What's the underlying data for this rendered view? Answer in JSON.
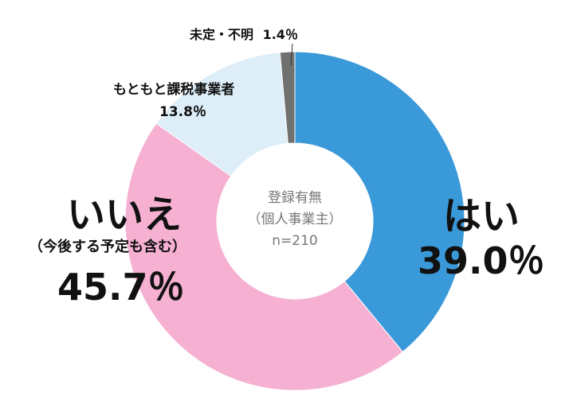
{
  "chart_data": {
    "type": "pie",
    "variant": "donut",
    "center_title": "登録有無",
    "center_subtitle": "（個人事業主）",
    "center_n": "n=210",
    "slices": [
      {
        "label": "はい",
        "value": 39.0,
        "value_label": "39.0％",
        "color": "#3a99d9"
      },
      {
        "label": "いいえ",
        "sublabel": "（今後する予定も含む）",
        "value": 45.7,
        "value_label": "45.7％",
        "color": "#f5b0d2"
      },
      {
        "label": "もともと課税事業者",
        "value": 13.8,
        "value_label": "13.8％",
        "color": "#ddeef8"
      },
      {
        "label": "未定・不明",
        "value": 1.4,
        "value_label": "1.4％",
        "color": "#707070"
      }
    ],
    "start_angle_deg": 0,
    "direction": "clockwise"
  }
}
